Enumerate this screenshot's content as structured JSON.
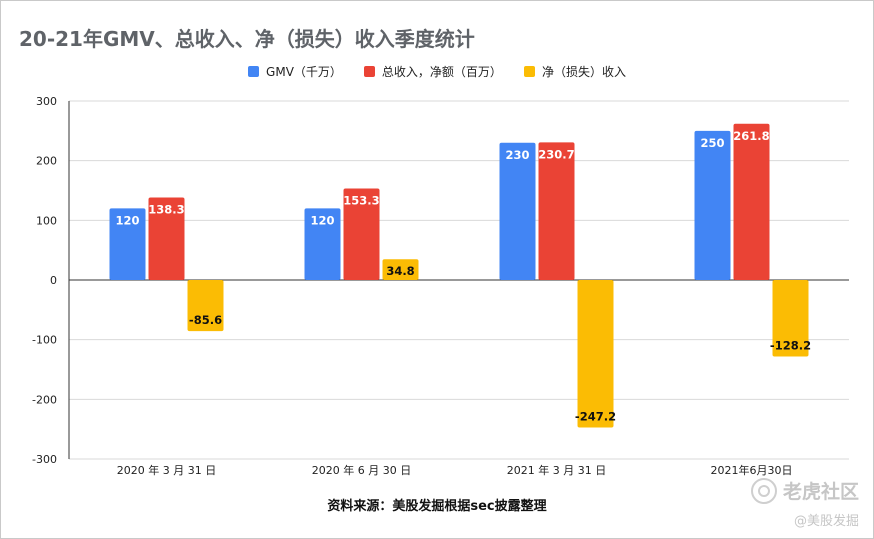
{
  "chart_data": {
    "type": "bar",
    "title": "20-21年GMV、总收入、净（损失）收入季度统计",
    "categories": [
      "2020 年 3 月 31 日",
      "2020 年 6 月 30 日",
      "2021 年 3 月 31 日",
      "2021年6月30日"
    ],
    "series": [
      {
        "name": "GMV（千万）",
        "color": "#4285f4",
        "values": [
          120,
          120,
          230,
          250
        ]
      },
      {
        "name": "总收入，净额（百万）",
        "color": "#ea4335",
        "values": [
          138.3,
          153.3,
          230.7,
          261.8
        ]
      },
      {
        "name": "净（损失）收入",
        "color": "#fbbc04",
        "values": [
          -85.6,
          34.8,
          -247.2,
          -128.2
        ]
      }
    ],
    "ylim": [
      -300,
      300
    ],
    "yticks": [
      300,
      200,
      100,
      0,
      -100,
      -200,
      -300
    ],
    "grid": true,
    "legend": "top-center",
    "source": "资料来源：美股发掘根据sec披露整理"
  },
  "watermark": {
    "brand": "老虎社区",
    "handle": "@美股发掘"
  }
}
